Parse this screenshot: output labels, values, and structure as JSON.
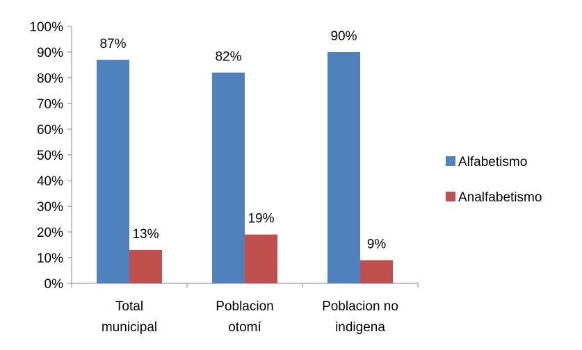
{
  "chart_data": {
    "type": "bar",
    "categories": [
      [
        "Total",
        "municipal"
      ],
      [
        "Poblacion",
        "otomí"
      ],
      [
        "Poblacion no",
        "indigena"
      ]
    ],
    "series": [
      {
        "name": "Alfabetismo",
        "color": "#4F81BD",
        "values": [
          87,
          82,
          90
        ],
        "labels": [
          "87%",
          "82%",
          "90%"
        ]
      },
      {
        "name": "Analfabetismo",
        "color": "#C0504D",
        "values": [
          13,
          19,
          9
        ],
        "labels": [
          "13%",
          "19%",
          "9%"
        ]
      }
    ],
    "ylim": [
      0,
      100
    ],
    "yticks": [
      "0%",
      "10%",
      "20%",
      "30%",
      "40%",
      "50%",
      "60%",
      "70%",
      "80%",
      "90%",
      "100%"
    ],
    "grid": false,
    "legend_position": "right"
  }
}
